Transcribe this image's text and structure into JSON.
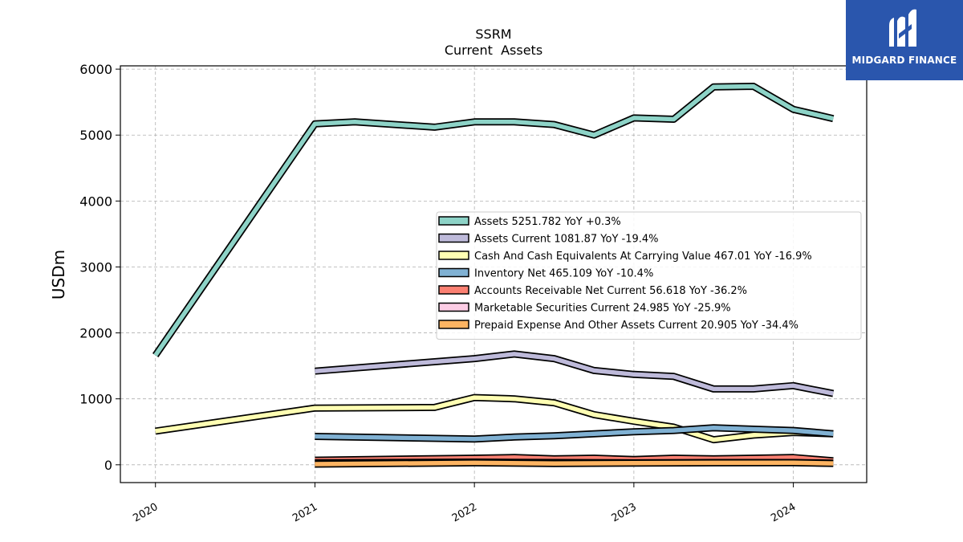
{
  "brand": {
    "name": "MIDGARD FINANCE",
    "bg_color": "#2a56ad"
  },
  "chart_data": {
    "type": "line",
    "title": "SSRM",
    "subtitle": "Current  Assets",
    "ylabel": "USDm",
    "xlabel": "",
    "ylim": [
      -270,
      6050
    ],
    "xlim": [
      2019.78,
      2024.46
    ],
    "yticks": [
      0,
      1000,
      2000,
      3000,
      4000,
      5000,
      6000
    ],
    "xticks": [
      "2020",
      "2021",
      "2022",
      "2023",
      "2024"
    ],
    "grid": true,
    "legend_position": "center-right",
    "series": [
      {
        "name": "Assets",
        "legend": "Assets  5251.782 YoY +0.3%",
        "color": "#8dd3c7",
        "x": [
          2020.0,
          2021.0,
          2021.25,
          2021.75,
          2022.0,
          2022.25,
          2022.5,
          2022.75,
          2023.0,
          2023.25,
          2023.5,
          2023.75,
          2024.0,
          2024.25
        ],
        "y": [
          1660,
          5170,
          5200,
          5120,
          5200,
          5200,
          5160,
          5000,
          5260,
          5240,
          5730,
          5740,
          5390,
          5250
        ]
      },
      {
        "name": "Assets Current",
        "legend": "Assets Current  1081.87 YoY -19.4%",
        "color": "#bebada",
        "x": [
          2021.0,
          2022.0,
          2022.25,
          2022.5,
          2022.75,
          2023.0,
          2023.25,
          2023.5,
          2023.75,
          2024.0,
          2024.25
        ],
        "y": [
          1420,
          1610,
          1680,
          1610,
          1430,
          1370,
          1340,
          1150,
          1150,
          1200,
          1080
        ]
      },
      {
        "name": "Cash And Cash Equivalents At Carrying Value",
        "legend": "Cash And Cash Equivalents At Carrying Value  467.01 YoY -16.9%",
        "color": "#ffffb3",
        "x": [
          2020.0,
          2021.0,
          2021.75,
          2022.0,
          2022.25,
          2022.5,
          2022.75,
          2023.0,
          2023.25,
          2023.5,
          2023.75,
          2024.0,
          2024.25
        ],
        "y": [
          510,
          860,
          870,
          1020,
          1000,
          940,
          760,
          660,
          570,
          380,
          450,
          490,
          470
        ]
      },
      {
        "name": "Inventory Net",
        "legend": "Inventory Net  465.109 YoY -10.4%",
        "color": "#80b1d3",
        "x": [
          2021.0,
          2022.0,
          2022.25,
          2022.5,
          2022.75,
          2023.0,
          2023.25,
          2023.5,
          2023.75,
          2024.0,
          2024.25
        ],
        "y": [
          430,
          390,
          420,
          440,
          470,
          500,
          520,
          560,
          540,
          520,
          470
        ]
      },
      {
        "name": "Accounts Receivable Net Current",
        "legend": "Accounts Receivable Net Current  56.618 YoY -36.2%",
        "color": "#fb8072",
        "x": [
          2021.0,
          2022.0,
          2022.25,
          2022.5,
          2022.75,
          2023.0,
          2023.25,
          2023.5,
          2023.75,
          2024.0,
          2024.25
        ],
        "y": [
          70,
          100,
          110,
          90,
          100,
          80,
          100,
          90,
          100,
          110,
          60
        ]
      },
      {
        "name": "Marketable Securities Current",
        "legend": "Marketable Securities Current  24.985 YoY -25.9%",
        "color": "#fccde5",
        "x": [
          2021.0,
          2022.0,
          2022.5,
          2023.0,
          2023.5,
          2024.0,
          2024.25
        ],
        "y": [
          30,
          40,
          35,
          30,
          35,
          34,
          25
        ]
      },
      {
        "name": "Prepaid Expense And Other Assets Current",
        "legend": "Prepaid Expense And Other Assets Current  20.905 YoY -34.4%",
        "color": "#fdb462",
        "x": [
          2021.0,
          2022.0,
          2022.5,
          2023.0,
          2023.5,
          2024.0,
          2024.25
        ],
        "y": [
          10,
          30,
          20,
          25,
          30,
          32,
          21
        ]
      }
    ]
  }
}
